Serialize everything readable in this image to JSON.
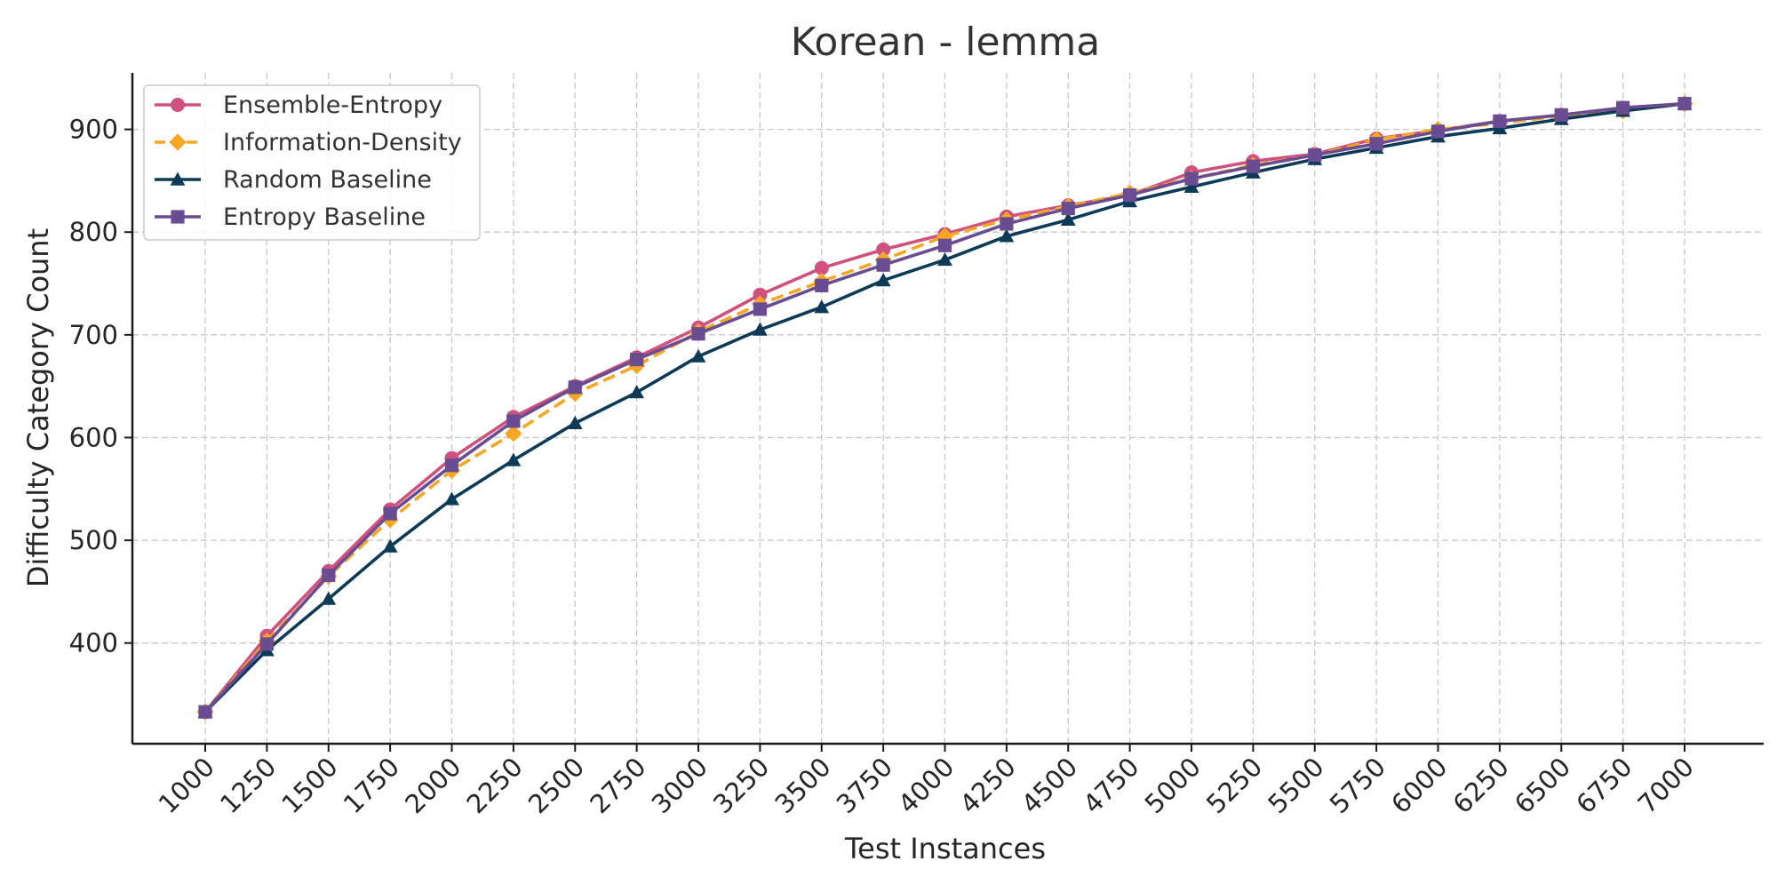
{
  "chart_data": {
    "type": "line",
    "title": "Korean - lemma",
    "xlabel": "Test Instances",
    "ylabel": "Difficulty Category Count",
    "x": [
      1000,
      1250,
      1500,
      1750,
      2000,
      2250,
      2500,
      2750,
      3000,
      3250,
      3500,
      3750,
      4000,
      4250,
      4500,
      4750,
      5000,
      5250,
      5500,
      5750,
      6000,
      6250,
      6500,
      6750,
      7000
    ],
    "x_tick_labels": [
      "1000",
      "1250",
      "1500",
      "1750",
      "2000",
      "2250",
      "2500",
      "2750",
      "3000",
      "3250",
      "3500",
      "3750",
      "4000",
      "4250",
      "4500",
      "4750",
      "5000",
      "5250",
      "5500",
      "5750",
      "6000",
      "6250",
      "6500",
      "6750",
      "7000"
    ],
    "y_ticks": [
      400,
      500,
      600,
      700,
      800,
      900
    ],
    "y_tick_labels": [
      "400",
      "500",
      "600",
      "700",
      "800",
      "900"
    ],
    "ylim": [
      302,
      955
    ],
    "grid": true,
    "legend_position": "top-left",
    "series": [
      {
        "name": "Ensemble-Entropy",
        "color": "#d0507e",
        "marker": "circle",
        "dashed": false,
        "values": [
          333,
          407,
          470,
          530,
          580,
          620,
          650,
          678,
          707,
          739,
          765,
          783,
          798,
          815,
          826,
          836,
          858,
          869,
          876,
          891,
          899,
          908,
          914,
          921,
          925
        ]
      },
      {
        "name": "Information-Density",
        "color": "#f5a623",
        "marker": "diamond",
        "dashed": true,
        "values": [
          333,
          402,
          465,
          520,
          568,
          604,
          643,
          670,
          703,
          730,
          752,
          773,
          796,
          812,
          825,
          838,
          852,
          865,
          875,
          890,
          900,
          906,
          913,
          918,
          925
        ]
      },
      {
        "name": "Random Baseline",
        "color": "#0d3b57",
        "marker": "triangle",
        "dashed": false,
        "values": [
          333,
          393,
          443,
          494,
          540,
          578,
          614,
          644,
          679,
          705,
          727,
          753,
          773,
          796,
          812,
          830,
          844,
          858,
          871,
          882,
          893,
          901,
          910,
          918,
          925
        ]
      },
      {
        "name": "Entropy Baseline",
        "color": "#6a4c93",
        "marker": "square",
        "dashed": false,
        "values": [
          333,
          399,
          466,
          526,
          573,
          616,
          649,
          676,
          701,
          725,
          748,
          768,
          787,
          808,
          823,
          836,
          852,
          864,
          875,
          886,
          898,
          908,
          914,
          921,
          925
        ]
      }
    ]
  }
}
